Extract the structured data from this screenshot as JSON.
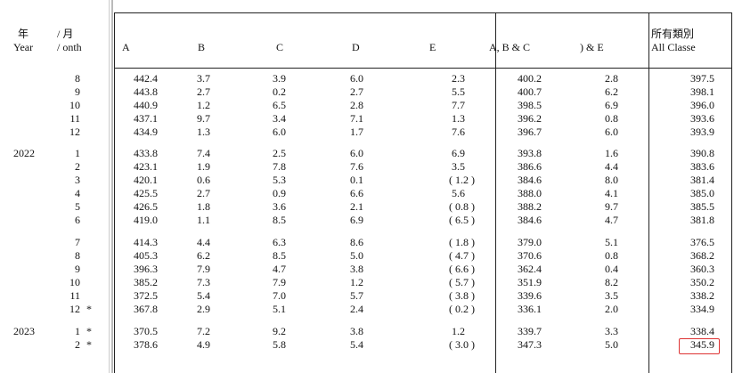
{
  "header": {
    "year_zh": "年",
    "month_zh": "/ 月",
    "year_en": "Year",
    "month_en": "/ onth",
    "columns": [
      "A",
      "B",
      "C",
      "D",
      "E",
      "A, B & C",
      ") & E"
    ],
    "all_zh": "所有類別",
    "all_en": "All Classe"
  },
  "groups": [
    {
      "rows": [
        {
          "month": "8",
          "cells": [
            "442.4",
            "3.7",
            "3.9",
            "6.0",
            "2.3",
            "400.2",
            "2.8",
            "397.5"
          ]
        },
        {
          "month": "9",
          "cells": [
            "443.8",
            "2.7",
            "0.2",
            "2.7",
            "5.5",
            "400.7",
            "6.2",
            "398.1"
          ]
        },
        {
          "month": "10",
          "cells": [
            "440.9",
            "1.2",
            "6.5",
            "2.8",
            "7.7",
            "398.5",
            "6.9",
            "396.0"
          ]
        },
        {
          "month": "11",
          "cells": [
            "437.1",
            "9.7",
            "3.4",
            "7.1",
            "1.3",
            "396.2",
            "0.8",
            "393.6"
          ]
        },
        {
          "month": "12",
          "cells": [
            "434.9",
            "1.3",
            "6.0",
            "1.7",
            "7.6",
            "396.7",
            "6.0",
            "393.9"
          ]
        }
      ]
    },
    {
      "year": "2022",
      "rows": [
        {
          "month": "1",
          "cells": [
            "433.8",
            "7.4",
            "2.5",
            "6.0",
            "6.9",
            "393.8",
            "1.6",
            "390.8"
          ]
        },
        {
          "month": "2",
          "cells": [
            "423.1",
            "1.9",
            "7.8",
            "7.6",
            "3.5",
            "386.6",
            "4.4",
            "383.6"
          ]
        },
        {
          "month": "3",
          "cells": [
            "420.1",
            "0.6",
            "5.3",
            "0.1",
            "( 1.2 )",
            "384.6",
            "8.0",
            "381.4"
          ]
        },
        {
          "month": "4",
          "cells": [
            "425.5",
            "2.7",
            "0.9",
            "6.6",
            "5.6",
            "388.0",
            "4.1",
            "385.0"
          ]
        },
        {
          "month": "5",
          "cells": [
            "426.5",
            "1.8",
            "3.6",
            "2.1",
            "( 0.8 )",
            "388.2",
            "9.7",
            "385.5"
          ]
        },
        {
          "month": "6",
          "cells": [
            "419.0",
            "1.1",
            "8.5",
            "6.9",
            "( 6.5 )",
            "384.6",
            "4.7",
            "381.8"
          ]
        }
      ]
    },
    {
      "rows": [
        {
          "month": "7",
          "cells": [
            "414.3",
            "4.4",
            "6.3",
            "8.6",
            "( 1.8 )",
            "379.0",
            "5.1",
            "376.5"
          ]
        },
        {
          "month": "8",
          "cells": [
            "405.3",
            "6.2",
            "8.5",
            "5.0",
            "( 4.7 )",
            "370.6",
            "0.8",
            "368.2"
          ]
        },
        {
          "month": "9",
          "cells": [
            "396.3",
            "7.9",
            "4.7",
            "3.8",
            "( 6.6 )",
            "362.4",
            "0.4",
            "360.3"
          ]
        },
        {
          "month": "10",
          "cells": [
            "385.2",
            "7.3",
            "7.9",
            "1.2",
            "( 5.7 )",
            "351.9",
            "8.2",
            "350.2"
          ]
        },
        {
          "month": "11",
          "cells": [
            "372.5",
            "5.4",
            "7.0",
            "5.7",
            "( 3.8 )",
            "339.6",
            "3.5",
            "338.2"
          ]
        },
        {
          "month": "12",
          "mark": "*",
          "cells": [
            "367.8",
            "2.9",
            "5.1",
            "2.4",
            "( 0.2 )",
            "336.1",
            "2.0",
            "334.9"
          ]
        }
      ]
    },
    {
      "year": "2023",
      "rows": [
        {
          "month": "1",
          "mark": "*",
          "cells": [
            "370.5",
            "7.2",
            "9.2",
            "3.8",
            "1.2",
            "339.7",
            "3.3",
            "338.4"
          ]
        },
        {
          "month": "2",
          "mark": "*",
          "cells": [
            "378.6",
            "4.9",
            "5.8",
            "5.4",
            "( 3.0 )",
            "347.3",
            "5.0",
            "345.9"
          ]
        }
      ]
    }
  ]
}
